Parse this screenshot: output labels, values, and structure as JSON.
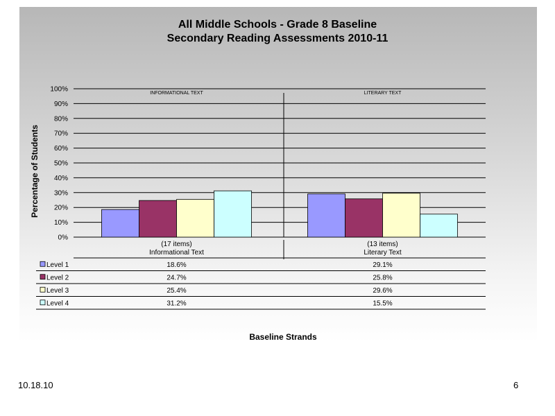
{
  "chart_data": {
    "type": "bar",
    "title": "All Middle Schools - Grade 8 Baseline",
    "subtitle": "Secondary Reading Assessments 2010-11",
    "xlabel": "Baseline Strands",
    "ylabel": "Percentage of Students",
    "ylim": [
      0,
      100
    ],
    "yticks": [
      "0%",
      "10%",
      "20%",
      "30%",
      "40%",
      "50%",
      "60%",
      "70%",
      "80%",
      "90%",
      "100%"
    ],
    "grid": true,
    "categories": [
      {
        "count": "(17 items)",
        "name": "Informational Text",
        "header": "INFORMATIONAL TEXT"
      },
      {
        "count": "(13 items)",
        "name": "Literary Text",
        "header": "LITERARY TEXT"
      }
    ],
    "series": [
      {
        "name": "Level 1",
        "color": "#9999ff",
        "values": [
          18.6,
          29.1
        ],
        "labels": [
          "18.6%",
          "29.1%"
        ]
      },
      {
        "name": "Level 2",
        "color": "#993366",
        "values": [
          24.7,
          25.8
        ],
        "labels": [
          "24.7%",
          "25.8%"
        ]
      },
      {
        "name": "Level 3",
        "color": "#ffffcc",
        "values": [
          25.4,
          29.6
        ],
        "labels": [
          "25.4%",
          "29.6%"
        ]
      },
      {
        "name": "Level 4",
        "color": "#ccffff",
        "values": [
          31.2,
          15.5
        ],
        "labels": [
          "31.2%",
          "15.5%"
        ]
      }
    ],
    "legend": "data table below plot"
  },
  "footer": {
    "date": "10.18.10",
    "page": "6"
  }
}
